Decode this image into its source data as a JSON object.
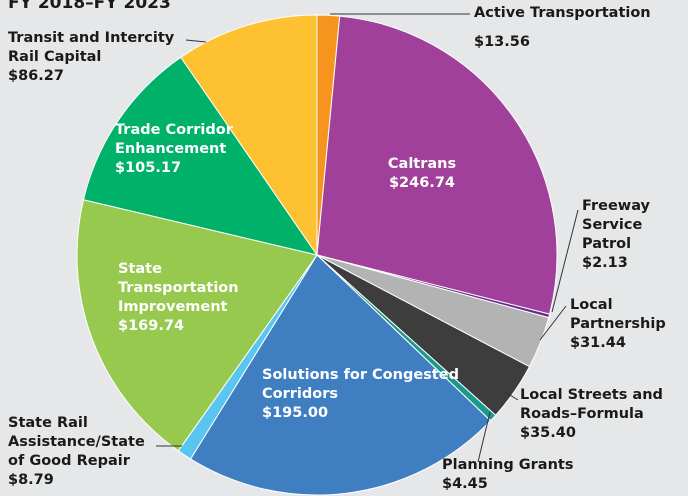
{
  "chart_data": {
    "type": "pie",
    "title": "FY 2018–FY 2023",
    "categories": [
      "Active Transportation",
      "Caltrans",
      "Freeway Service Patrol",
      "Local Partnership",
      "Local Streets and Roads–Formula",
      "Planning Grants",
      "Solutions for Congested Corridors",
      "State Rail Assistance/State of Good Repair",
      "State Transportation Improvement",
      "Trade Corridor Enhancement",
      "Transit and Intercity Rail Capital"
    ],
    "values": [
      13.56,
      246.74,
      2.13,
      31.44,
      35.4,
      4.45,
      195.0,
      8.79,
      169.74,
      105.17,
      86.27
    ],
    "value_labels": [
      "$13.56",
      "$246.74",
      "$2.13",
      "$31.44",
      "$35.40",
      "$4.45",
      "$195.00",
      "$8.79",
      "$169.74",
      "$105.17",
      "$86.27"
    ],
    "colors": [
      "#f7941d",
      "#a0409a",
      "#6a2c8c",
      "#b3b3b3",
      "#3d3d3d",
      "#1a9a8a",
      "#3f7fc1",
      "#5bc5f2",
      "#98c94f",
      "#00b16a",
      "#fdc131"
    ]
  }
}
